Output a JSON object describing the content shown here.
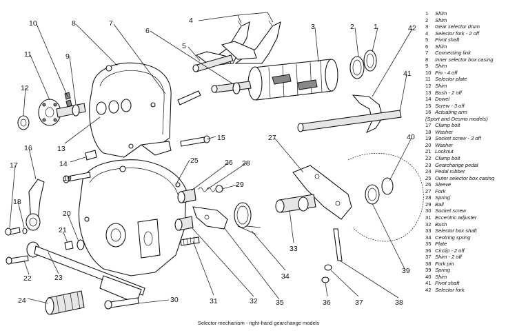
{
  "caption": "Selector mechanism - right-hand gearchange models",
  "legend": {
    "items_a": [
      {
        "n": "1",
        "label": "Shim"
      },
      {
        "n": "2",
        "label": "Shim"
      },
      {
        "n": "3",
        "label": "Gear selector drum"
      },
      {
        "n": "4",
        "label": "Selector fork - 2 off"
      },
      {
        "n": "5",
        "label": "Pivot shaft"
      },
      {
        "n": "6",
        "label": "Shim"
      },
      {
        "n": "7",
        "label": "Connecting link"
      },
      {
        "n": "8",
        "label": "Inner selector box casing"
      },
      {
        "n": "9",
        "label": "Shim"
      },
      {
        "n": "10",
        "label": "Pin - 4 off"
      },
      {
        "n": "11",
        "label": "Selector plate"
      },
      {
        "n": "12",
        "label": "Shim"
      },
      {
        "n": "13",
        "label": "Bush - 2 off"
      },
      {
        "n": "14",
        "label": "Dowel"
      },
      {
        "n": "15",
        "label": "Screw - 3 off"
      },
      {
        "n": "16",
        "label": "Actuating arm"
      }
    ],
    "note": "(Sport and Desmo models)",
    "items_b": [
      {
        "n": "17",
        "label": "Clamp bolt"
      },
      {
        "n": "18",
        "label": "Washer"
      },
      {
        "n": "19",
        "label": "Socket screw - 3 off"
      },
      {
        "n": "20",
        "label": "Washer"
      },
      {
        "n": "21",
        "label": "Locknut"
      },
      {
        "n": "22",
        "label": "Clamp bolt"
      },
      {
        "n": "23",
        "label": "Gearchange pedal"
      },
      {
        "n": "24",
        "label": "Pedal rubber"
      },
      {
        "n": "25",
        "label": "Outer selector box casing"
      },
      {
        "n": "26",
        "label": "Sleeve"
      },
      {
        "n": "27",
        "label": "Fork"
      },
      {
        "n": "28",
        "label": "Spring"
      },
      {
        "n": "29",
        "label": "Ball"
      },
      {
        "n": "30",
        "label": "Socket screw"
      },
      {
        "n": "31",
        "label": "Eccentric adjuster"
      },
      {
        "n": "32",
        "label": "Bush"
      },
      {
        "n": "33",
        "label": "Selector box shaft"
      },
      {
        "n": "34",
        "label": "Centring spring"
      },
      {
        "n": "35",
        "label": "Plate"
      },
      {
        "n": "36",
        "label": "Circlip - 2 off"
      },
      {
        "n": "37",
        "label": "Shim - 2 off"
      },
      {
        "n": "38",
        "label": "Fork pin"
      },
      {
        "n": "39",
        "label": "Spring"
      },
      {
        "n": "40",
        "label": "Shim"
      },
      {
        "n": "41",
        "label": "Pivot shaft"
      },
      {
        "n": "42",
        "label": "Selector fork"
      }
    ]
  },
  "callouts": [
    "1",
    "2",
    "3",
    "4",
    "5",
    "6",
    "7",
    "8",
    "9",
    "10",
    "11",
    "12",
    "13",
    "14",
    "15",
    "16",
    "17",
    "18",
    "19",
    "20",
    "21",
    "22",
    "23",
    "24",
    "25",
    "26",
    "27",
    "28",
    "29",
    "30",
    "31",
    "32",
    "33",
    "34",
    "35",
    "36",
    "37",
    "38",
    "39",
    "40",
    "41",
    "42"
  ]
}
